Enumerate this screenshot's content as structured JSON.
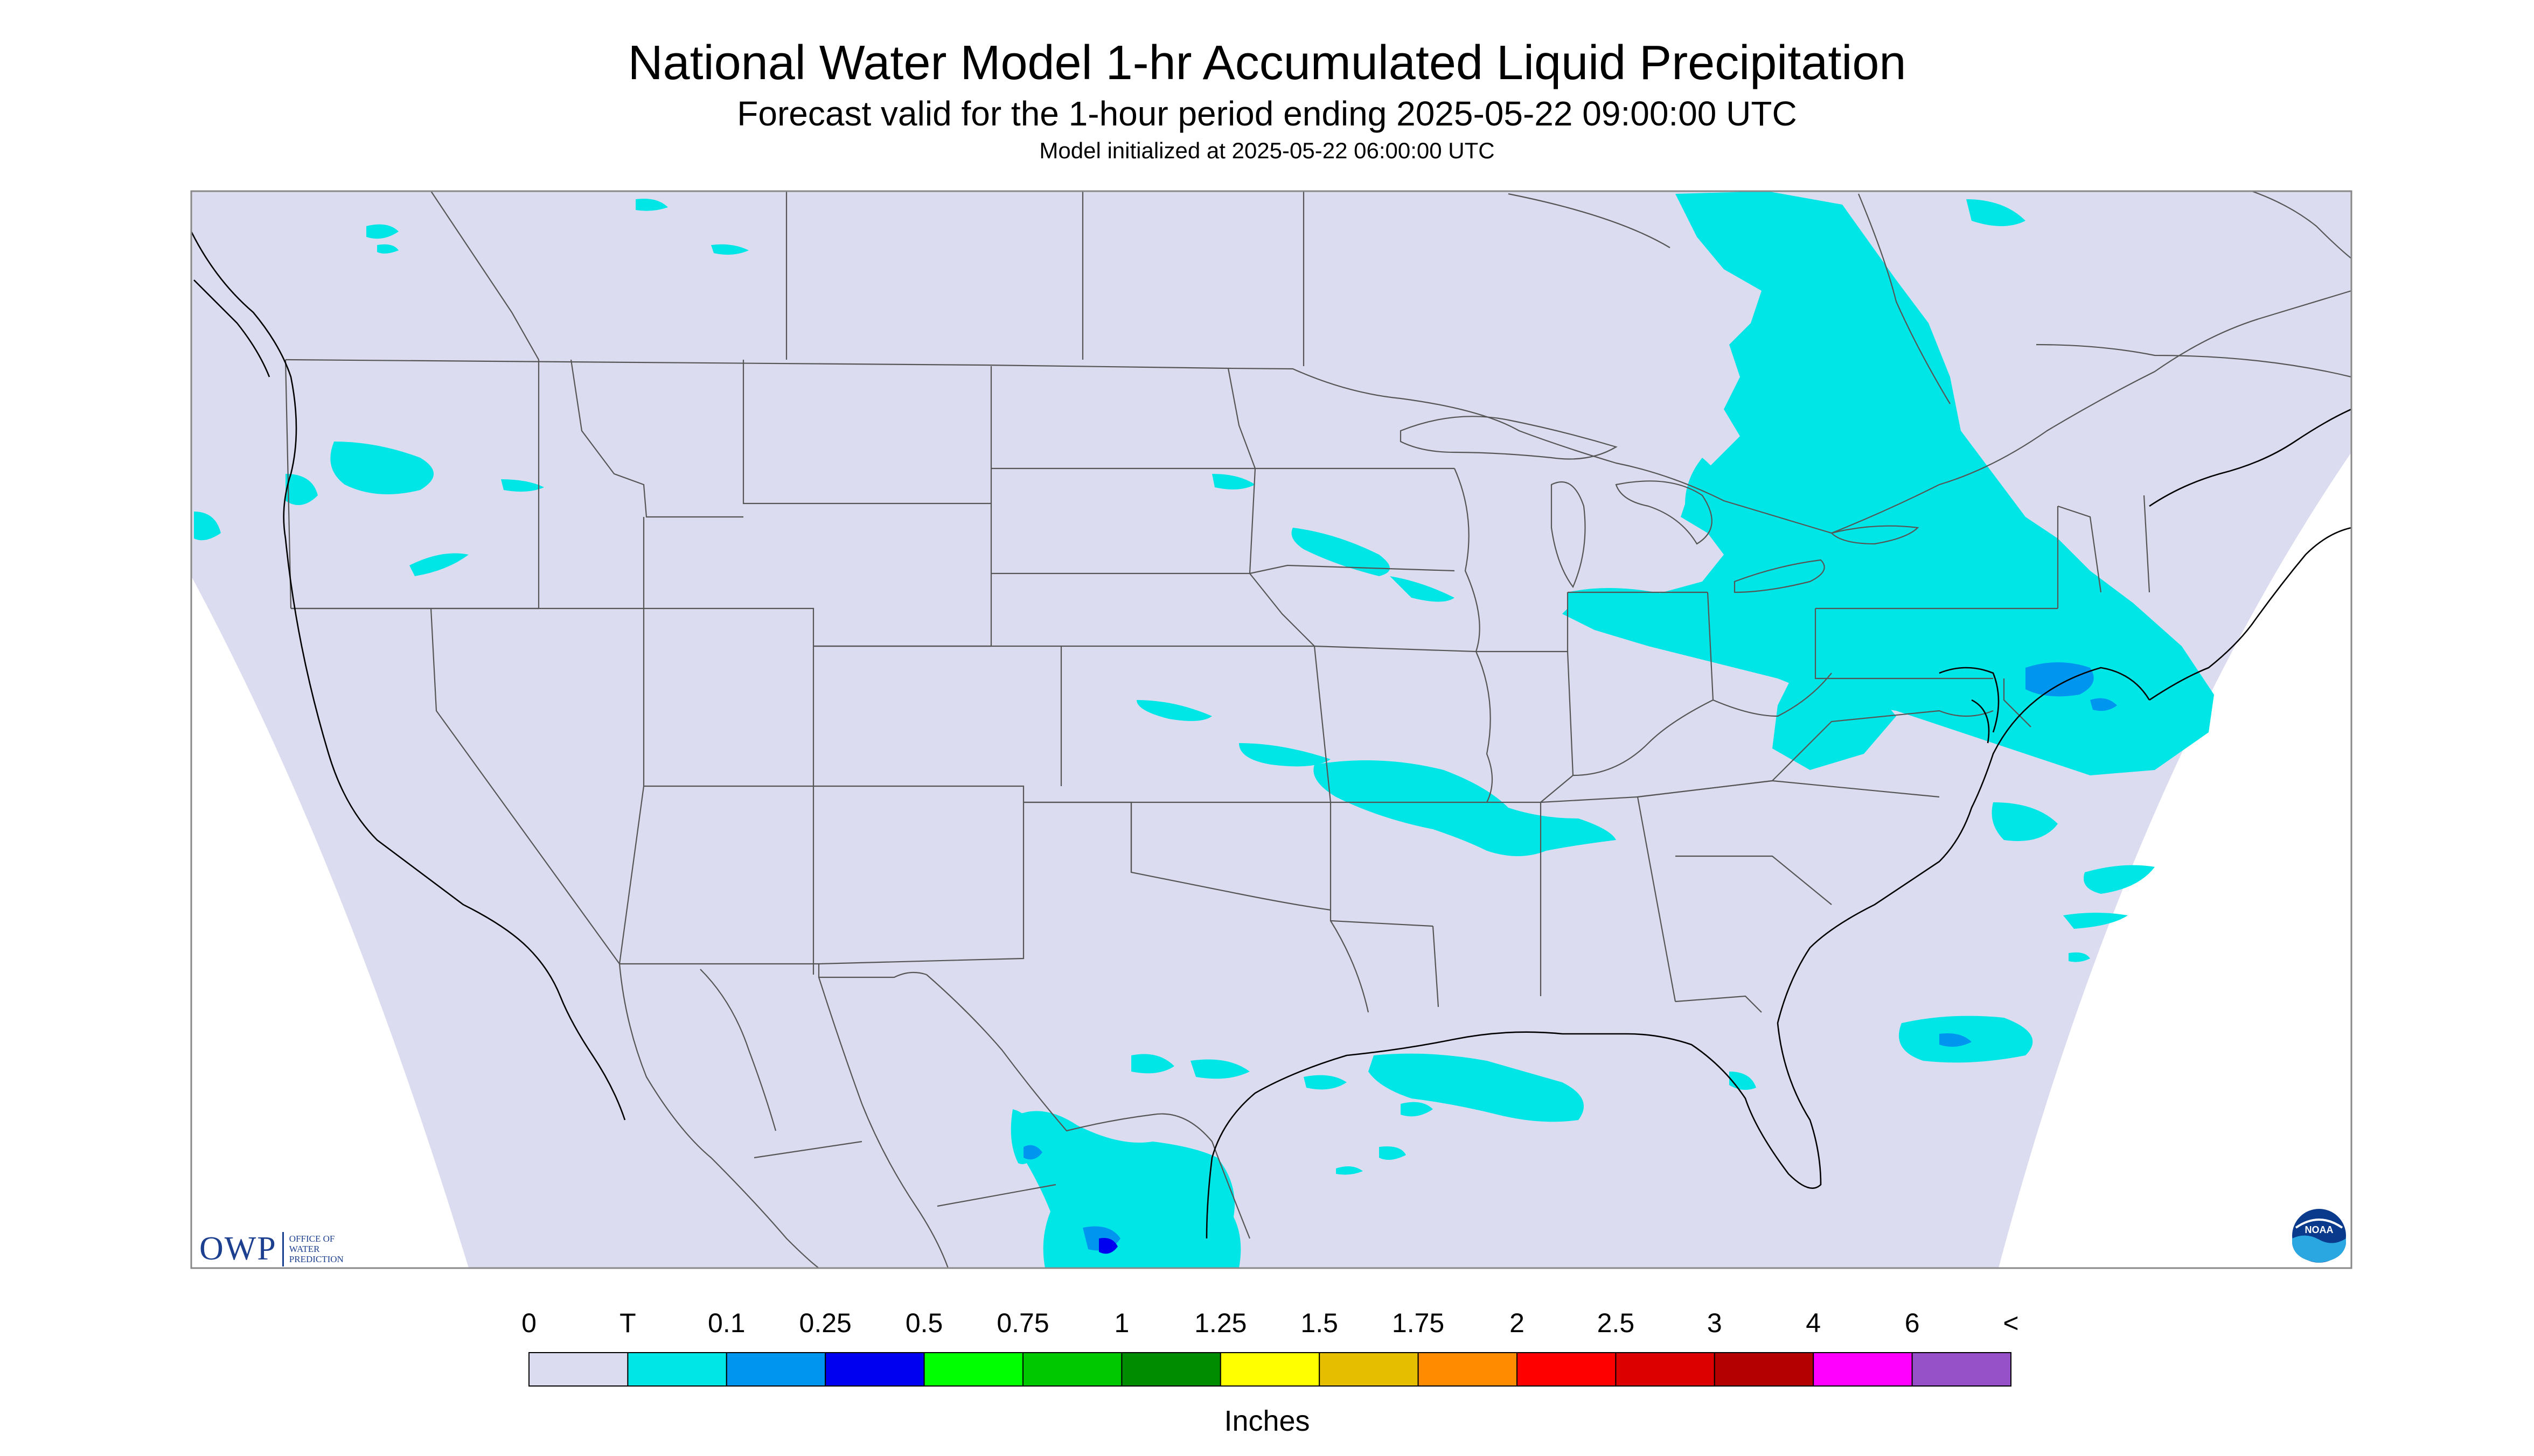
{
  "header": {
    "title": "National Water Model 1-hr Accumulated Liquid Precipitation",
    "subtitle": "Forecast valid for the 1-hour period ending 2025-05-22 09:00:00 UTC",
    "init": "Model initialized at 2025-05-22 06:00:00 UTC"
  },
  "legend": {
    "labels": [
      "0",
      "T",
      "0.1",
      "0.25",
      "0.5",
      "0.75",
      "1",
      "1.25",
      "1.5",
      "1.75",
      "2",
      "2.5",
      "3",
      "4",
      "6",
      "<"
    ],
    "colors": [
      "#dcdcf0",
      "#00e6e6",
      "#0096f0",
      "#0000f0",
      "#00ff00",
      "#00c800",
      "#008c00",
      "#ffff00",
      "#e6be00",
      "#ff8c00",
      "#ff0000",
      "#dc0000",
      "#b40000",
      "#ff00ff",
      "#9650c8"
    ],
    "units": "Inches"
  },
  "logos": {
    "owp_mark": "OWP",
    "owp_lines": [
      "OFFICE OF",
      "WATER",
      "PREDICTION"
    ],
    "noaa_text": "NOAA"
  },
  "map": {
    "background_color": "#dcdcf0",
    "precip_color": "#00e6e6",
    "precip_light_color": "#0096f0",
    "precip_heavy_color": "#0000f0"
  }
}
